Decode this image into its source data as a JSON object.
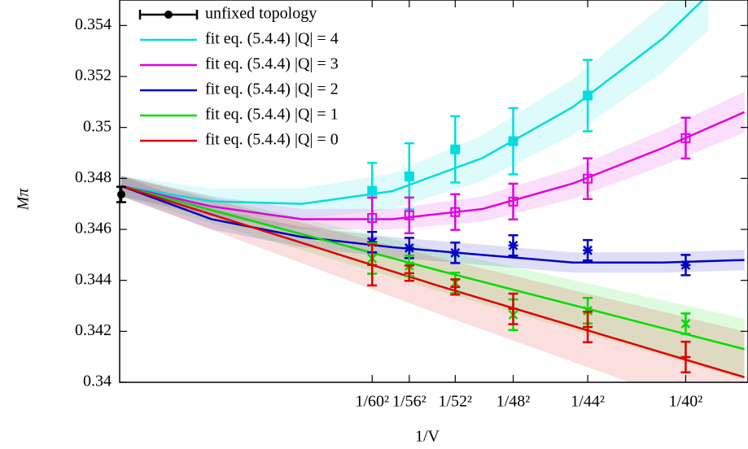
{
  "chart_data": {
    "type": "scatter",
    "xlabel": "1/V",
    "ylabel": "Mπ",
    "xlim": [
      -1.8e-06,
      0.000694
    ],
    "ylim": [
      0.34,
      0.355
    ],
    "yticks": [
      0.34,
      0.342,
      0.344,
      0.346,
      0.348,
      0.35,
      0.352,
      0.354
    ],
    "xticks": [
      {
        "value": 0.0002778,
        "label": "1/60²"
      },
      {
        "value": 0.0003189,
        "label": "1/56²"
      },
      {
        "value": 0.0003698,
        "label": "1/52²"
      },
      {
        "value": 0.000434,
        "label": "1/48²"
      },
      {
        "value": 0.0005165,
        "label": "1/44²"
      },
      {
        "value": 0.000625,
        "label": "1/40²"
      }
    ],
    "legend": "upper left",
    "series": [
      {
        "name": "unfixed topology",
        "color": "#000000",
        "marker": "circle",
        "x": [
          0
        ],
        "values": [
          0.34737
        ],
        "errors": [
          0.0003
        ]
      },
      {
        "name": "fit eq. (5.4.4) |Q| = 4",
        "color": "#00dddd",
        "marker": "square",
        "x": [
          0.0002778,
          0.0003189,
          0.0003698,
          0.000434,
          0.0005165
        ],
        "values": [
          0.34751,
          0.34808,
          0.34914,
          0.34946,
          0.35125
        ],
        "errors": [
          0.0011,
          0.0013,
          0.0013,
          0.0013,
          0.0014
        ],
        "fit_x": [
          0,
          0.0001,
          0.0002,
          0.0003,
          0.0004,
          0.0005,
          0.0006,
          0.00065
        ],
        "fit_values": [
          0.3477,
          0.3471,
          0.347,
          0.3475,
          0.3488,
          0.3508,
          0.3535,
          0.3552
        ],
        "fit_band": [
          0.0004,
          0.0005,
          0.0006,
          0.0007,
          0.0009,
          0.0011,
          0.0013,
          0.0014
        ]
      },
      {
        "name": "fit eq. (5.4.4) |Q| = 3",
        "color": "#e000e0",
        "marker": "open-square",
        "x": [
          0.0002778,
          0.0003189,
          0.0003698,
          0.000434,
          0.0005165,
          0.000625
        ],
        "values": [
          0.34645,
          0.34655,
          0.34668,
          0.34709,
          0.34799,
          0.34958
        ],
        "errors": [
          0.0008,
          0.0007,
          0.0007,
          0.0007,
          0.0008,
          0.0008
        ],
        "fit_x": [
          0,
          0.0001,
          0.0002,
          0.0003,
          0.0004,
          0.0005,
          0.0006,
          0.00069
        ],
        "fit_values": [
          0.3477,
          0.3469,
          0.3464,
          0.3464,
          0.3468,
          0.3478,
          0.3492,
          0.3506
        ],
        "fit_band": [
          0.0004,
          0.0004,
          0.0004,
          0.0004,
          0.0005,
          0.0006,
          0.0007,
          0.0008
        ]
      },
      {
        "name": "fit eq. (5.4.4) |Q| = 2",
        "color": "#0000c8",
        "marker": "star",
        "x": [
          0.0002778,
          0.0003189,
          0.0003698,
          0.000434,
          0.0005165,
          0.000625
        ],
        "values": [
          0.3455,
          0.34527,
          0.34508,
          0.34537,
          0.34518,
          0.3446
        ],
        "errors": [
          0.0004,
          0.0004,
          0.0004,
          0.0004,
          0.0004,
          0.0004
        ],
        "fit_x": [
          0,
          0.0001,
          0.0002,
          0.0003,
          0.0004,
          0.0005,
          0.0006,
          0.00069
        ],
        "fit_values": [
          0.3477,
          0.3464,
          0.3457,
          0.3453,
          0.345,
          0.3447,
          0.3447,
          0.3448
        ],
        "fit_band": [
          0.0004,
          0.0004,
          0.0004,
          0.0004,
          0.0004,
          0.0004,
          0.0004,
          0.0004
        ]
      },
      {
        "name": "fit eq. (5.4.4) |Q| = 1",
        "color": "#00dd00",
        "marker": "cross",
        "x": [
          0.0002778,
          0.0003189,
          0.0003698,
          0.000434,
          0.0005165,
          0.000625
        ],
        "values": [
          0.34486,
          0.34457,
          0.3439,
          0.34265,
          0.34281,
          0.3423
        ],
        "errors": [
          0.0006,
          0.0004,
          0.0004,
          0.0006,
          0.0005,
          0.0004
        ],
        "fit_x": [
          0,
          0.00035,
          0.00069
        ],
        "fit_values": [
          0.3477,
          0.3444,
          0.3413
        ],
        "fit_band": [
          0.0004,
          0.0008,
          0.0012
        ]
      },
      {
        "name": "fit eq. (5.4.4) |Q| = 0",
        "color": "#e00000",
        "marker": "plus",
        "x": [
          0.0002778,
          0.0003189,
          0.0003698,
          0.000434,
          0.0005165,
          0.000625
        ],
        "values": [
          0.3446,
          0.34428,
          0.34374,
          0.34288,
          0.34217,
          0.34099
        ],
        "errors": [
          0.0008,
          0.0003,
          0.0003,
          0.0006,
          0.0006,
          0.0006
        ],
        "fit_x": [
          0,
          0.00035,
          0.00069
        ],
        "fit_values": [
          0.3477,
          0.3438,
          0.3402
        ],
        "fit_band": [
          0.0004,
          0.0011,
          0.0018
        ]
      }
    ]
  }
}
